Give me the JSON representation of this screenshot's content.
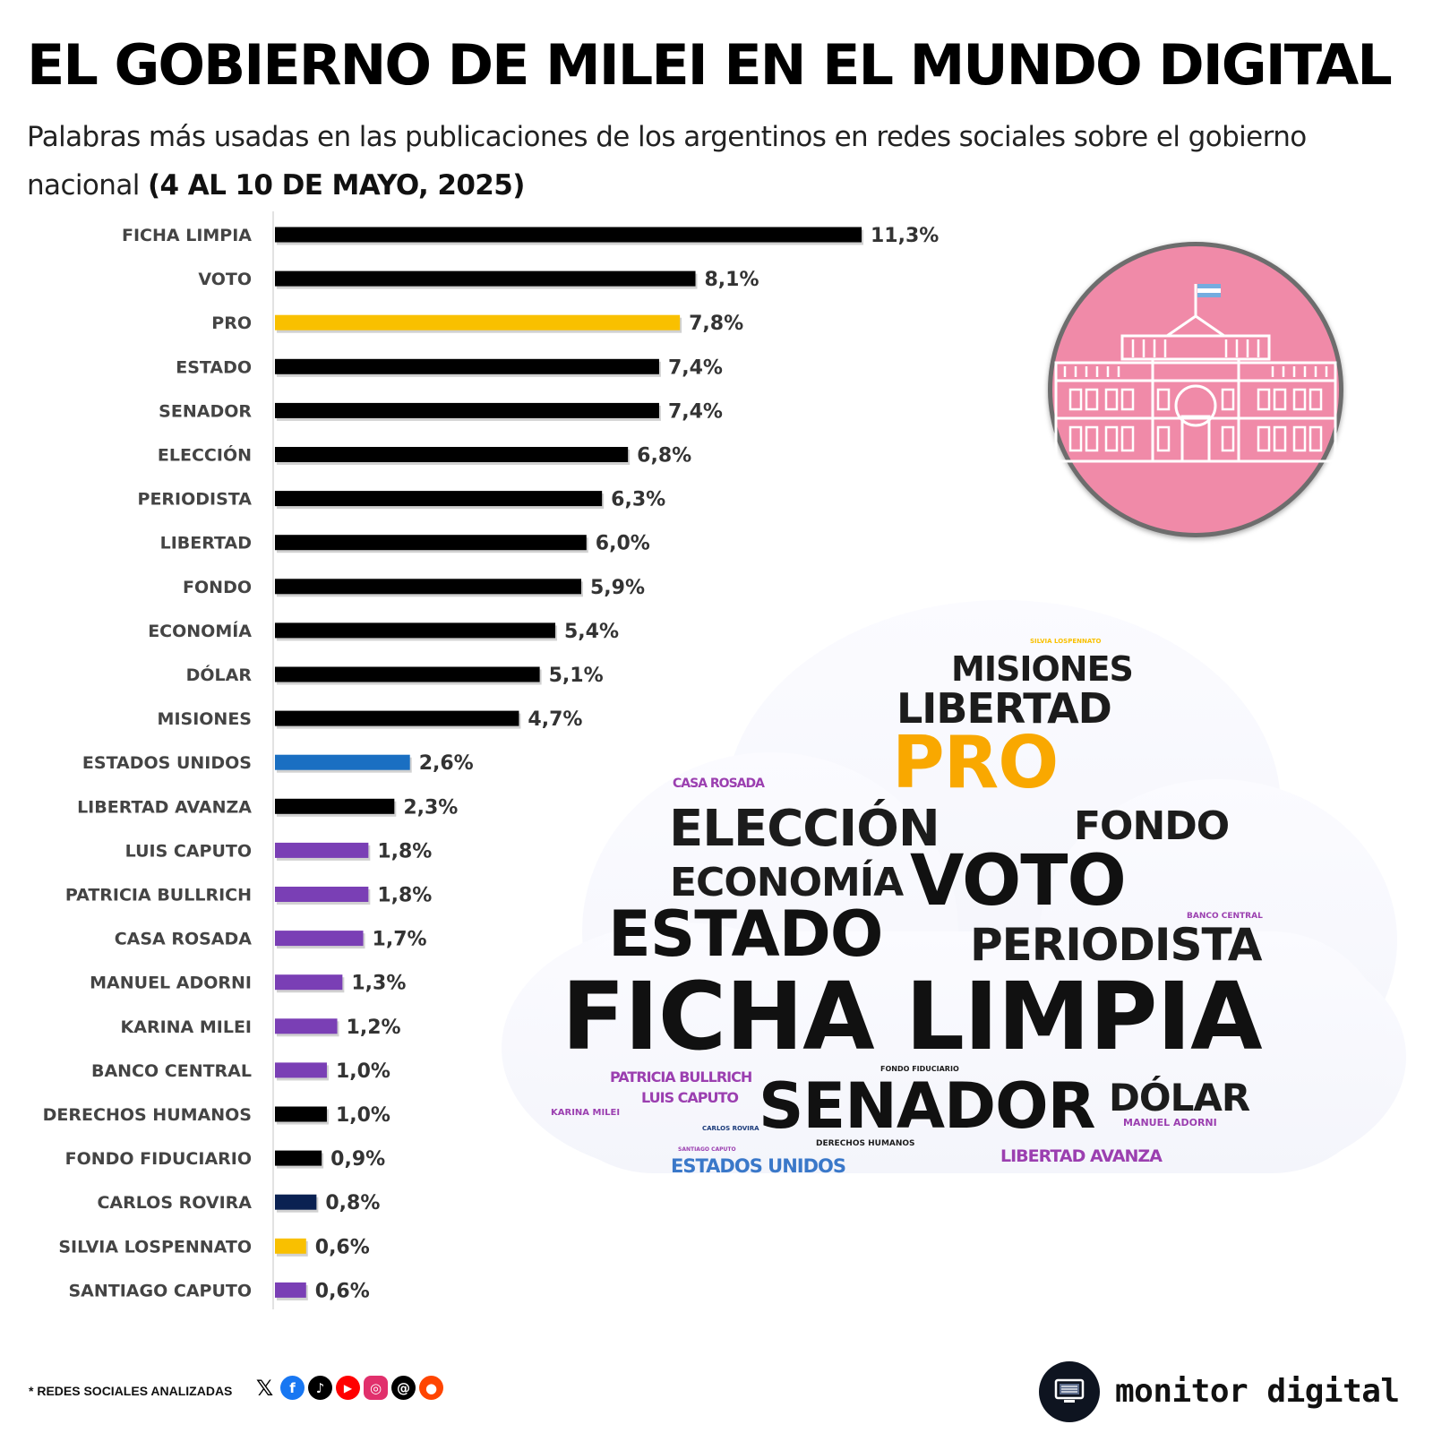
{
  "header": {
    "title": "EL GOBIERNO DE MILEI EN EL MUNDO DIGITAL",
    "subtitle_regular": "Palabras más usadas en las publicaciones de los argentinos en redes sociales sobre el gobierno nacional ",
    "subtitle_bold": "(4 AL 10 DE MAYO, 2025)"
  },
  "chart_data": {
    "type": "bar",
    "orientation": "horizontal",
    "title": "EL GOBIERNO DE MILEI EN EL MUNDO DIGITAL",
    "xlabel": "",
    "ylabel": "",
    "categories": [
      "FICHA LIMPIA",
      "VOTO",
      "PRO",
      "ESTADO",
      "SENADOR",
      "ELECCIÓN",
      "PERIODISTA",
      "LIBERTAD",
      "FONDO",
      "ECONOMÍA",
      "DÓLAR",
      "MISIONES",
      "ESTADOS UNIDOS",
      "LIBERTAD AVANZA",
      "LUIS CAPUTO",
      "PATRICIA BULLRICH",
      "CASA ROSADA",
      "MANUEL ADORNI",
      "KARINA MILEI",
      "BANCO CENTRAL",
      "DERECHOS HUMANOS",
      "FONDO FIDUCIARIO",
      "CARLOS ROVIRA",
      "SILVIA LOSPENNATO",
      "SANTIAGO CAPUTO"
    ],
    "values": [
      11.3,
      8.1,
      7.8,
      7.4,
      7.4,
      6.8,
      6.3,
      6.0,
      5.9,
      5.4,
      5.1,
      4.7,
      2.6,
      2.3,
      1.8,
      1.8,
      1.7,
      1.3,
      1.2,
      1.0,
      1.0,
      0.9,
      0.8,
      0.6,
      0.6
    ],
    "value_labels": [
      "11,3%",
      "8,1%",
      "7,8%",
      "7,4%",
      "7,4%",
      "6,8%",
      "6,3%",
      "6,0%",
      "5,9%",
      "5,4%",
      "5,1%",
      "4,7%",
      "2,6%",
      "2,3%",
      "1,8%",
      "1,8%",
      "1,7%",
      "1,3%",
      "1,2%",
      "1,0%",
      "1,0%",
      "0,9%",
      "0,8%",
      "0,6%",
      "0,6%"
    ],
    "colors": [
      "#000000",
      "#000000",
      "#f9c000",
      "#000000",
      "#000000",
      "#000000",
      "#000000",
      "#000000",
      "#000000",
      "#000000",
      "#000000",
      "#000000",
      "#1a6fc2",
      "#000000",
      "#7a3fb5",
      "#7a3fb5",
      "#7a3fb5",
      "#7a3fb5",
      "#7a3fb5",
      "#7a3fb5",
      "#000000",
      "#000000",
      "#0a2152",
      "#f9c000",
      "#7a3fb5"
    ],
    "xlim": [
      0,
      11.3
    ]
  },
  "wordcloud": [
    {
      "word": "SILVIA LOSPENNATO",
      "color": "#f9c000"
    },
    {
      "word": "MISIONES",
      "color": "#1c1c1c"
    },
    {
      "word": "LIBERTAD",
      "color": "#1c1c1c"
    },
    {
      "word": "PRO",
      "color": "#f9a800"
    },
    {
      "word": "CASA ROSADA",
      "color": "#9b3fb0"
    },
    {
      "word": "ELECCIÓN",
      "color": "#1c1c1c"
    },
    {
      "word": "FONDO",
      "color": "#1c1c1c"
    },
    {
      "word": "ECONOMÍA",
      "color": "#1c1c1c"
    },
    {
      "word": "VOTO",
      "color": "#111111"
    },
    {
      "word": "ESTADO",
      "color": "#111111"
    },
    {
      "word": "BANCO CENTRAL",
      "color": "#9b3fb0"
    },
    {
      "word": "PERIODISTA",
      "color": "#1c1c1c"
    },
    {
      "word": "FICHA LIMPIA",
      "color": "#111111"
    },
    {
      "word": "FONDO FIDUCIARIO",
      "color": "#1c1c1c"
    },
    {
      "word": "PATRICIA BULLRICH",
      "color": "#9b3fb0"
    },
    {
      "word": "LUIS CAPUTO",
      "color": "#9b3fb0"
    },
    {
      "word": "SENADOR",
      "color": "#111111"
    },
    {
      "word": "DÓLAR",
      "color": "#1c1c1c"
    },
    {
      "word": "KARINA MILEI",
      "color": "#9b3fb0"
    },
    {
      "word": "MANUEL ADORNI",
      "color": "#9b3fb0"
    },
    {
      "word": "CARLOS ROVIRA",
      "color": "#1a3a7a"
    },
    {
      "word": "SANTIAGO CAPUTO",
      "color": "#9b3fb0"
    },
    {
      "word": "DERECHOS HUMANOS",
      "color": "#1c1c1c"
    },
    {
      "word": "ESTADOS UNIDOS",
      "color": "#3a78c9"
    },
    {
      "word": "LIBERTAD AVANZA",
      "color": "#9b3fb0"
    }
  ],
  "footer": {
    "note": "* REDES SOCIALES ANALIZADAS",
    "social_icons": [
      "x-icon",
      "facebook-icon",
      "tiktok-icon",
      "youtube-icon",
      "instagram-icon",
      "threads-icon",
      "reddit-icon"
    ],
    "brand": "monitor digital"
  },
  "emblem": {
    "icon": "casa-rosada-icon",
    "background": "#f08aa8",
    "flag_colors": [
      "#74acdf",
      "#ffffff",
      "#74acdf"
    ]
  }
}
